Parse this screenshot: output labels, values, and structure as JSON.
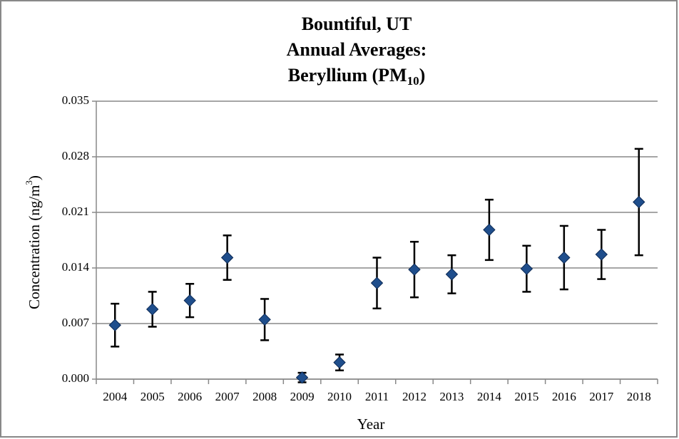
{
  "chart_data": {
    "type": "errorbar-scatter",
    "title": [
      "Bountiful, UT",
      "Annual Averages:",
      {
        "text": "Beryllium (PM",
        "sub": "10",
        "end": ")"
      }
    ],
    "x_label": "Year",
    "y_label": {
      "text": "Concentration (ng/m",
      "sup": "3",
      "end": ")"
    },
    "categories": [
      "2004",
      "2005",
      "2006",
      "2007",
      "2008",
      "2009",
      "2010",
      "2011",
      "2012",
      "2013",
      "2014",
      "2015",
      "2016",
      "2017",
      "2018"
    ],
    "values": [
      0.0068,
      0.0088,
      0.0099,
      0.0153,
      0.0075,
      0.0002,
      0.0021,
      0.0121,
      0.0138,
      0.0132,
      0.0188,
      0.0139,
      0.0153,
      0.0157,
      0.0223
    ],
    "errors": [
      0.0027,
      0.0022,
      0.0021,
      0.0028,
      0.0026,
      0.0006,
      0.001,
      0.0032,
      0.0035,
      0.0024,
      0.0038,
      0.0029,
      0.004,
      0.0031,
      0.0067
    ],
    "color": "#1f4e8c",
    "ylim": [
      0,
      0.035
    ],
    "yticks": [
      {
        "value": 0,
        "label": "0.000"
      },
      {
        "value": 0.007,
        "label": "0.007"
      },
      {
        "value": 0.014,
        "label": "0.014"
      },
      {
        "value": 0.021,
        "label": "0.021"
      },
      {
        "value": 0.028,
        "label": "0.028"
      },
      {
        "value": 0.035,
        "label": "0.035"
      }
    ],
    "grid": true
  }
}
